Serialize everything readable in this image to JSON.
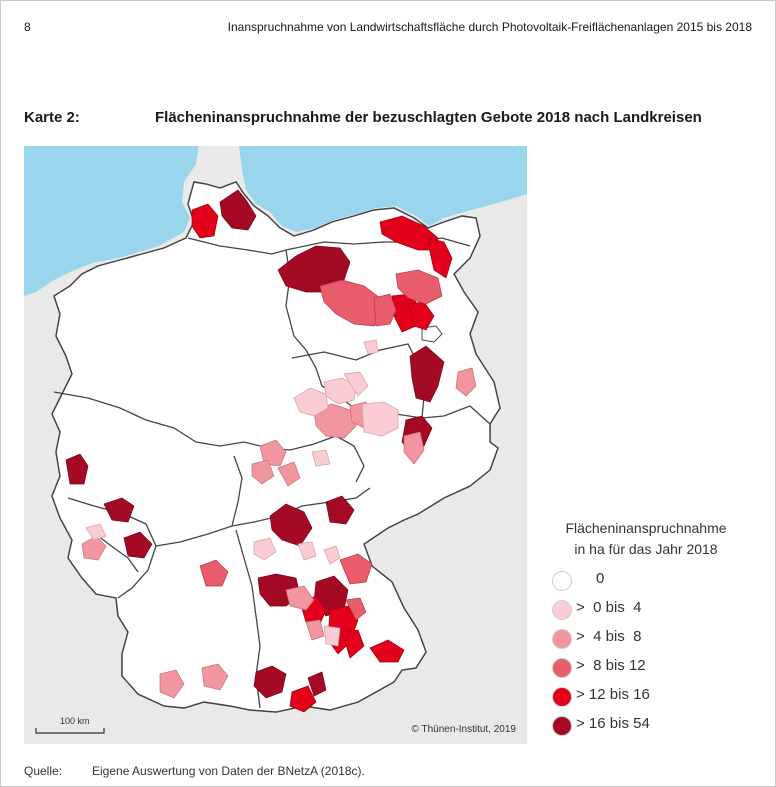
{
  "header": {
    "page_number": "8",
    "running_title": "Inanspruchnahme von Landwirtschaftsfläche durch Photovoltaik-Freiflächenanlagen 2015 bis 2018"
  },
  "map": {
    "label": "Karte 2:",
    "title": "Flächeninanspruchnahme der bezuschlagten Gebote 2018 nach Landkreisen",
    "scale_label": "100 km",
    "copyright": "© Thünen-Institut, 2019"
  },
  "legend": {
    "title_line1": "Flächeninanspruchnahme",
    "title_line2": "in ha für das Jahr 2018",
    "items": [
      {
        "label": "0",
        "color": "#ffffff"
      },
      {
        "label": ">  0 bis  4",
        "color": "#f9cdd3"
      },
      {
        "label": ">  4 bis  8",
        "color": "#f1969f"
      },
      {
        "label": ">  8 bis 12",
        "color": "#e85c6b"
      },
      {
        "label": "> 12 bis 16",
        "color": "#e3001b"
      },
      {
        "label": "> 16 bis 54",
        "color": "#a50a25"
      }
    ]
  },
  "colors": {
    "sea": "#99d5ec",
    "neighbor": "#e8e8e8",
    "county_fill": "#ffffff",
    "state_border": "#444444",
    "county_border": "#b5b5b5"
  },
  "footer": {
    "source_label": "Quelle:",
    "source_text": "Eigene Auswertung von Daten der BNetzA (2018c)."
  }
}
